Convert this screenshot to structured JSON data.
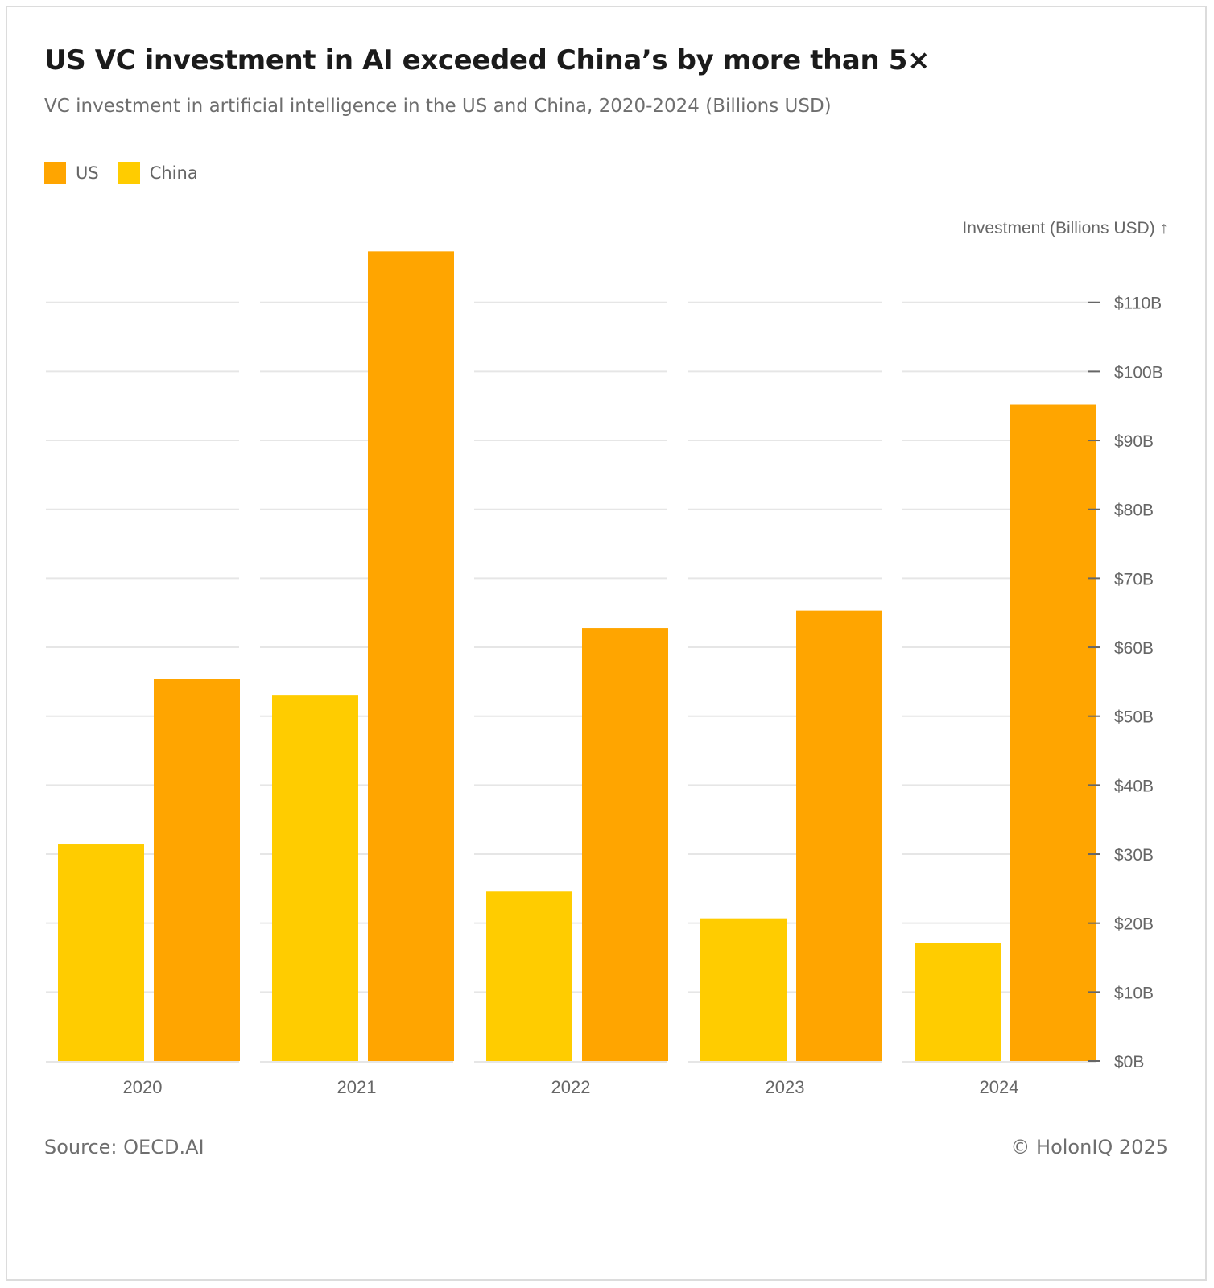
{
  "footer": {
    "source": "Source: OECD.AI",
    "copyright": "© HolonIQ 2025"
  },
  "colors": {
    "us": "#ffa500",
    "china": "#ffcc00",
    "grid": "#e6e6e6",
    "axis": "#666666"
  },
  "chart_data": {
    "type": "bar",
    "title": "US VC investment in AI exceeded China’s by more than 5×",
    "subtitle": "VC investment in artificial intelligence in the US and China, 2020-2024 (Billions USD)",
    "xlabel": "",
    "ylabel": "Investment (Billions USD) ↑",
    "categories": [
      "2020",
      "2021",
      "2022",
      "2023",
      "2024"
    ],
    "series": [
      {
        "name": "US",
        "values": [
          55.4,
          117.4,
          62.8,
          65.3,
          95.2
        ]
      },
      {
        "name": "China",
        "values": [
          31.4,
          53.1,
          24.6,
          20.7,
          17.1
        ]
      }
    ],
    "draw_order": [
      "China",
      "US"
    ],
    "ylim": [
      0,
      117.4
    ],
    "yticks": [
      0,
      10,
      20,
      30,
      40,
      50,
      60,
      70,
      80,
      90,
      100,
      110
    ],
    "ytick_labels": [
      "$0B",
      "$10B",
      "$20B",
      "$30B",
      "$40B",
      "$50B",
      "$60B",
      "$70B",
      "$80B",
      "$90B",
      "$100B",
      "$110B"
    ],
    "y_axis_position": "right",
    "legend": [
      "US",
      "China"
    ],
    "legend_position": "top-left",
    "grid": true
  }
}
